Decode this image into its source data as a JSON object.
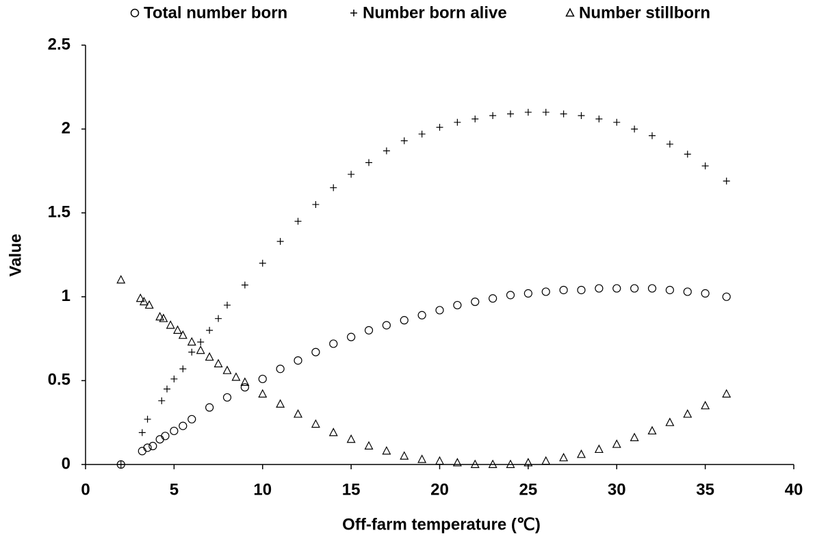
{
  "chart_data": {
    "type": "scatter",
    "x_label": "Off-farm temperature (℃)",
    "y_label": "Value",
    "xlim": [
      0,
      40
    ],
    "xticks": [
      0,
      5,
      10,
      15,
      20,
      25,
      30,
      35,
      40
    ],
    "ylim": [
      0,
      2.5
    ],
    "yticks": [
      0,
      0.5,
      1,
      1.5,
      2,
      2.5
    ],
    "grid": false,
    "legend": "top",
    "series": [
      {
        "name": "Total number born",
        "color": "#000000",
        "marker": "circle",
        "x": [
          2,
          3.2,
          3.5,
          3.8,
          4.2,
          4.5,
          5,
          5.5,
          6,
          7,
          8,
          9,
          10,
          11,
          12,
          13,
          14,
          15,
          16,
          17,
          18,
          19,
          20,
          21,
          22,
          23,
          24,
          25,
          26,
          27,
          28,
          29,
          30,
          31,
          32,
          33,
          34,
          35,
          36.2
        ],
        "values": [
          0,
          0.08,
          0.1,
          0.11,
          0.15,
          0.17,
          0.2,
          0.23,
          0.27,
          0.34,
          0.4,
          0.46,
          0.51,
          0.57,
          0.62,
          0.67,
          0.72,
          0.76,
          0.8,
          0.83,
          0.86,
          0.89,
          0.92,
          0.95,
          0.97,
          0.99,
          1.01,
          1.02,
          1.03,
          1.04,
          1.04,
          1.05,
          1.05,
          1.05,
          1.05,
          1.04,
          1.03,
          1.02,
          1.0
        ]
      },
      {
        "name": "Number born alive",
        "color": "#000000",
        "marker": "plus",
        "x": [
          2,
          3.2,
          3.5,
          4.3,
          4.6,
          5,
          5.5,
          6,
          6.5,
          7,
          7.5,
          8,
          9,
          10,
          11,
          12,
          13,
          14,
          15,
          16,
          17,
          18,
          19,
          20,
          21,
          22,
          23,
          24,
          25,
          26,
          27,
          28,
          29,
          30,
          31,
          32,
          33,
          34,
          35,
          36.2
        ],
        "values": [
          0,
          0.19,
          0.27,
          0.38,
          0.45,
          0.51,
          0.57,
          0.67,
          0.73,
          0.8,
          0.87,
          0.95,
          1.07,
          1.2,
          1.33,
          1.45,
          1.55,
          1.65,
          1.73,
          1.8,
          1.87,
          1.93,
          1.97,
          2.01,
          2.04,
          2.06,
          2.08,
          2.09,
          2.1,
          2.1,
          2.09,
          2.08,
          2.06,
          2.04,
          2.0,
          1.96,
          1.91,
          1.85,
          1.78,
          1.69
        ]
      },
      {
        "name": "Number stillborn",
        "color": "#000000",
        "marker": "triangle",
        "x": [
          2,
          3.1,
          3.3,
          3.6,
          4.2,
          4.4,
          4.8,
          5.2,
          5.5,
          6,
          6.5,
          7,
          7.5,
          8,
          8.5,
          9,
          10,
          11,
          12,
          13,
          14,
          15,
          16,
          17,
          18,
          19,
          20,
          21,
          22,
          23,
          24,
          25,
          26,
          27,
          28,
          29,
          30,
          31,
          32,
          33,
          34,
          35,
          36.2
        ],
        "values": [
          1.1,
          0.99,
          0.97,
          0.95,
          0.88,
          0.87,
          0.83,
          0.8,
          0.77,
          0.73,
          0.68,
          0.64,
          0.6,
          0.56,
          0.52,
          0.49,
          0.42,
          0.36,
          0.3,
          0.24,
          0.19,
          0.15,
          0.11,
          0.08,
          0.05,
          0.03,
          0.02,
          0.01,
          0,
          0,
          0,
          0.01,
          0.02,
          0.04,
          0.06,
          0.09,
          0.12,
          0.16,
          0.2,
          0.25,
          0.3,
          0.35,
          0.42
        ]
      }
    ]
  }
}
